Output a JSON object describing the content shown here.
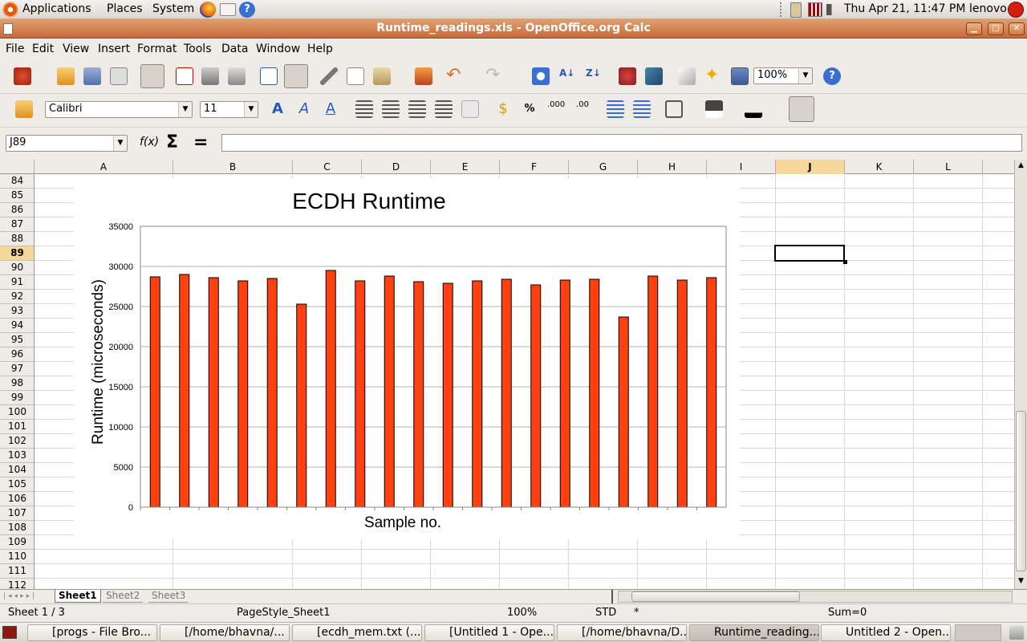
{
  "top_panel": {
    "applications": "Applications",
    "places": "Places",
    "system": "System",
    "datetime": "Thu Apr 21, 11:47 PM",
    "user": "lenovo"
  },
  "window": {
    "title": "Runtime_readings.xls - OpenOffice.org Calc"
  },
  "menu": [
    "File",
    "Edit",
    "View",
    "Insert",
    "Format",
    "Tools",
    "Data",
    "Window",
    "Help"
  ],
  "toolbar": {
    "zoom": "100%",
    "font": "Calibri",
    "size": "11"
  },
  "formula": {
    "cell_ref": "J89",
    "content": ""
  },
  "columns": [
    "A",
    "B",
    "C",
    "D",
    "E",
    "F",
    "G",
    "H",
    "I",
    "J",
    "K",
    "L"
  ],
  "rows": [
    "84",
    "85",
    "86",
    "87",
    "88",
    "89",
    "90",
    "91",
    "92",
    "93",
    "94",
    "95",
    "96",
    "97",
    "98",
    "99",
    "100",
    "101",
    "102",
    "103",
    "104",
    "105",
    "106",
    "107",
    "108",
    "109",
    "110",
    "111",
    "112"
  ],
  "active_row": "89",
  "chart_data": {
    "type": "bar",
    "title": "ECDH Runtime",
    "xlabel": "Sample no.",
    "ylabel": "Runtime (microseconds)",
    "ylim": [
      0,
      35000
    ],
    "yticks": [
      "0",
      "5000",
      "10000",
      "15000",
      "20000",
      "25000",
      "30000",
      "35000"
    ],
    "grid": true,
    "legend": "none",
    "bar_color": "#ff4010",
    "values": [
      28700,
      29000,
      28600,
      28200,
      28500,
      25300,
      29500,
      28200,
      28800,
      28100,
      27900,
      28200,
      28400,
      27700,
      28300,
      28400,
      23700,
      28800,
      28300,
      28600
    ]
  },
  "sheet_tabs": [
    "Sheet1",
    "Sheet2",
    "Sheet3"
  ],
  "status": {
    "sheet": "Sheet 1 / 3",
    "style": "PageStyle_Sheet1",
    "zoom": "100%",
    "mode": "STD",
    "modified": "*",
    "sum": "Sum=0"
  },
  "taskbar": [
    "[progs - File Bro...",
    "[/home/bhavna/...",
    "[ecdh_mem.txt (...",
    "[Untitled 1 - Ope...",
    "[/home/bhavna/D...",
    "Runtime_reading...",
    "Untitled 2 - Open..."
  ]
}
